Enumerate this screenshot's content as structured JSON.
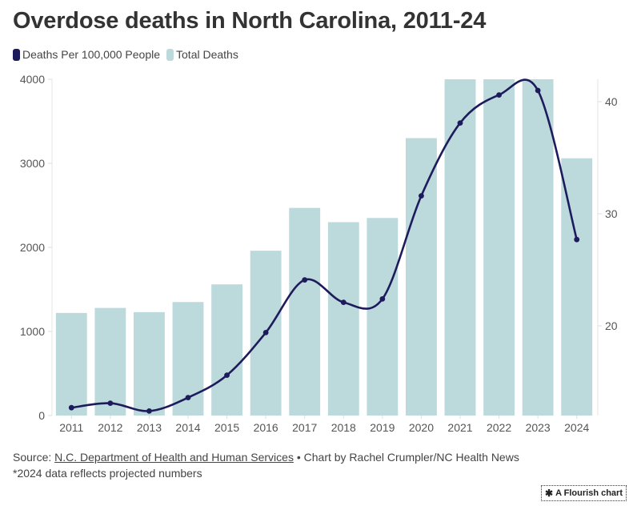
{
  "title": "Overdose deaths in North Carolina, 2011-24",
  "legend": [
    {
      "label": "Deaths Per 100,000 People",
      "color": "#1e1b5c"
    },
    {
      "label": "Total Deaths",
      "color": "#bcd9dc"
    }
  ],
  "footer": {
    "source_prefix": "Source: ",
    "source_link": "N.C. Department of Health and Human Services",
    "source_suffix": " • Chart by Rachel Crumpler/NC Health News",
    "note": "*2024 data reflects projected numbers"
  },
  "badge": {
    "label": "A Flourish chart",
    "icon": "flourish-asterisk-icon"
  },
  "chart_data": {
    "type": "bar+line",
    "title": "Overdose deaths in North Carolina, 2011-24",
    "categories": [
      "2011",
      "2012",
      "2013",
      "2014",
      "2015",
      "2016",
      "2017",
      "2018",
      "2019",
      "2020",
      "2021",
      "2022",
      "2023",
      "2024"
    ],
    "series": [
      {
        "name": "Total Deaths",
        "type": "bar",
        "axis": "left",
        "color": "#bcd9dc",
        "values": [
          1220,
          1280,
          1230,
          1350,
          1560,
          1960,
          2470,
          2300,
          2350,
          3300,
          4000,
          4000,
          4000,
          3060
        ],
        "note": "2021-2023 bars exceed the 4000 axis maximum and are clipped"
      },
      {
        "name": "Deaths Per 100,000 People",
        "type": "line",
        "axis": "right",
        "color": "#1e1b5c",
        "values": [
          12.7,
          13.1,
          12.4,
          13.6,
          15.6,
          19.4,
          24.1,
          22.1,
          22.4,
          31.6,
          38.1,
          40.6,
          41.0,
          27.7
        ]
      }
    ],
    "left_axis": {
      "ylim": [
        0,
        4000
      ],
      "ticks": [
        0,
        1000,
        2000,
        3000,
        4000
      ]
    },
    "right_axis": {
      "ylim": [
        11,
        42
      ],
      "ticks": [
        20,
        30,
        40
      ]
    },
    "xlabel": "",
    "ylabel": "",
    "grid": false,
    "legend_position": "top-left"
  }
}
